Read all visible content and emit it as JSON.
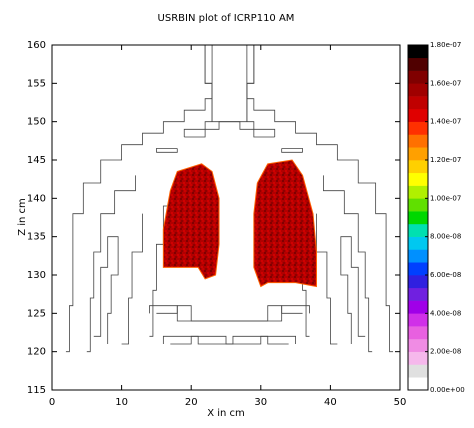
{
  "chart_data": {
    "type": "heatmap",
    "title": "USRBIN plot of ICRP110 AM",
    "x_label": "X in cm",
    "y_label": "Z in cm",
    "xlim": [
      0,
      50
    ],
    "xticks": [
      0,
      10,
      20,
      30,
      40,
      50
    ],
    "ylim": [
      115,
      160
    ],
    "yticks": [
      115,
      120,
      125,
      130,
      135,
      140,
      145,
      150,
      155,
      160
    ],
    "colorbar": {
      "lim": [
        0,
        1.8e-07
      ],
      "ticks": [
        {
          "value": 0,
          "label": "0.00e+00"
        },
        {
          "value": 2e-08,
          "label": "2.00e-08"
        },
        {
          "value": 4e-08,
          "label": "4.00e-08"
        },
        {
          "value": 6e-08,
          "label": "6.00e-08"
        },
        {
          "value": 8e-08,
          "label": "8.00e-08"
        },
        {
          "value": 1e-07,
          "label": "1.00e-07"
        },
        {
          "value": 1.2e-07,
          "label": "1.20e-07"
        },
        {
          "value": 1.4e-07,
          "label": "1.40e-07"
        },
        {
          "value": 1.6e-07,
          "label": "1.60e-07"
        },
        {
          "value": 1.8e-07,
          "label": "1.80e-07"
        }
      ],
      "colors": [
        "#ffffff",
        "#e0e0e0",
        "#f6b8ec",
        "#f08ce4",
        "#e860e0",
        "#d030e8",
        "#a000e8",
        "#7020e0",
        "#3020e0",
        "#0040ff",
        "#0090ff",
        "#00c8f0",
        "#00e0b0",
        "#00d800",
        "#60e000",
        "#b0f000",
        "#ffff00",
        "#ffd000",
        "#ffa000",
        "#ff7000",
        "#ff3000",
        "#e00000",
        "#c00000",
        "#a00000",
        "#800000",
        "#500000",
        "#000000"
      ]
    }
  }
}
